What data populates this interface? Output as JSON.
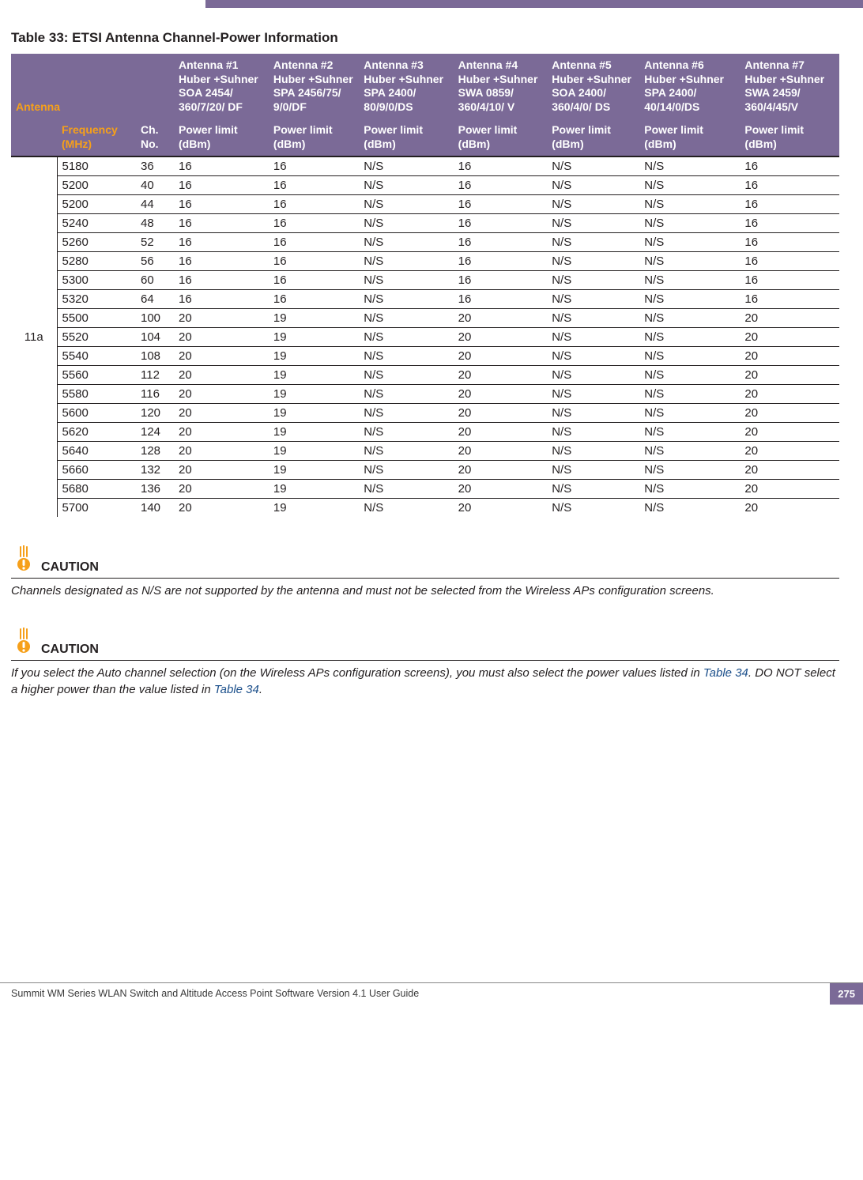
{
  "colors": {
    "header_bg": "#7b6a97",
    "header_fg": "#ffffff",
    "body_fg": "#231f20",
    "link": "#1a4e8a",
    "icon_orange": "#f6a01a"
  },
  "table": {
    "title": "Table 33: ETSI Antenna Channel-Power Information",
    "header_row1": {
      "antenna": "Antenna",
      "a1": "Antenna #1 Huber +Suhner SOA 2454/ 360/7/20/ DF",
      "a2": "Antenna #2 Huber +Suhner SPA 2456/75/ 9/0/DF",
      "a3": "Antenna #3 Huber +Suhner SPA 2400/ 80/9/0/DS",
      "a4": "Antenna #4 Huber +Suhner SWA 0859/ 360/4/10/ V",
      "a5": "Antenna #5 Huber +Suhner SOA 2400/ 360/4/0/ DS",
      "a6": "Antenna #6 Huber +Suhner SPA 2400/ 40/14/0/DS",
      "a7": "Antenna #7 Huber +Suhner SWA 2459/ 360/4/45/V"
    },
    "header_row2": {
      "blank": "",
      "freq": "Frequency (MHz)",
      "ch": "Ch. No.",
      "p": "Power limit (dBm)"
    },
    "band_label": "11a",
    "rows": [
      {
        "freq": "5180",
        "ch": "36",
        "a1": "16",
        "a2": "16",
        "a3": "N/S",
        "a4": "16",
        "a5": "N/S",
        "a6": "N/S",
        "a7": "16"
      },
      {
        "freq": "5200",
        "ch": "40",
        "a1": "16",
        "a2": "16",
        "a3": "N/S",
        "a4": "16",
        "a5": "N/S",
        "a6": "N/S",
        "a7": "16"
      },
      {
        "freq": "5200",
        "ch": "44",
        "a1": "16",
        "a2": "16",
        "a3": "N/S",
        "a4": "16",
        "a5": "N/S",
        "a6": "N/S",
        "a7": "16"
      },
      {
        "freq": "5240",
        "ch": "48",
        "a1": "16",
        "a2": "16",
        "a3": "N/S",
        "a4": "16",
        "a5": "N/S",
        "a6": "N/S",
        "a7": "16"
      },
      {
        "freq": "5260",
        "ch": "52",
        "a1": "16",
        "a2": "16",
        "a3": "N/S",
        "a4": "16",
        "a5": "N/S",
        "a6": "N/S",
        "a7": "16"
      },
      {
        "freq": "5280",
        "ch": "56",
        "a1": "16",
        "a2": "16",
        "a3": "N/S",
        "a4": "16",
        "a5": "N/S",
        "a6": "N/S",
        "a7": "16"
      },
      {
        "freq": "5300",
        "ch": "60",
        "a1": "16",
        "a2": "16",
        "a3": "N/S",
        "a4": "16",
        "a5": "N/S",
        "a6": "N/S",
        "a7": "16"
      },
      {
        "freq": "5320",
        "ch": "64",
        "a1": "16",
        "a2": "16",
        "a3": "N/S",
        "a4": "16",
        "a5": "N/S",
        "a6": "N/S",
        "a7": "16"
      },
      {
        "freq": "5500",
        "ch": "100",
        "a1": "20",
        "a2": "19",
        "a3": "N/S",
        "a4": "20",
        "a5": "N/S",
        "a6": "N/S",
        "a7": "20"
      },
      {
        "freq": "5520",
        "ch": "104",
        "a1": "20",
        "a2": "19",
        "a3": "N/S",
        "a4": "20",
        "a5": "N/S",
        "a6": "N/S",
        "a7": "20"
      },
      {
        "freq": "5540",
        "ch": "108",
        "a1": "20",
        "a2": "19",
        "a3": "N/S",
        "a4": "20",
        "a5": "N/S",
        "a6": "N/S",
        "a7": "20"
      },
      {
        "freq": "5560",
        "ch": "112",
        "a1": "20",
        "a2": "19",
        "a3": "N/S",
        "a4": "20",
        "a5": "N/S",
        "a6": "N/S",
        "a7": "20"
      },
      {
        "freq": "5580",
        "ch": "116",
        "a1": "20",
        "a2": "19",
        "a3": "N/S",
        "a4": "20",
        "a5": "N/S",
        "a6": "N/S",
        "a7": "20"
      },
      {
        "freq": "5600",
        "ch": "120",
        "a1": "20",
        "a2": "19",
        "a3": "N/S",
        "a4": "20",
        "a5": "N/S",
        "a6": "N/S",
        "a7": "20"
      },
      {
        "freq": "5620",
        "ch": "124",
        "a1": "20",
        "a2": "19",
        "a3": "N/S",
        "a4": "20",
        "a5": "N/S",
        "a6": "N/S",
        "a7": "20"
      },
      {
        "freq": "5640",
        "ch": "128",
        "a1": "20",
        "a2": "19",
        "a3": "N/S",
        "a4": "20",
        "a5": "N/S",
        "a6": "N/S",
        "a7": "20"
      },
      {
        "freq": "5660",
        "ch": "132",
        "a1": "20",
        "a2": "19",
        "a3": "N/S",
        "a4": "20",
        "a5": "N/S",
        "a6": "N/S",
        "a7": "20"
      },
      {
        "freq": "5680",
        "ch": "136",
        "a1": "20",
        "a2": "19",
        "a3": "N/S",
        "a4": "20",
        "a5": "N/S",
        "a6": "N/S",
        "a7": "20"
      },
      {
        "freq": "5700",
        "ch": "140",
        "a1": "20",
        "a2": "19",
        "a3": "N/S",
        "a4": "20",
        "a5": "N/S",
        "a6": "N/S",
        "a7": "20"
      }
    ]
  },
  "caution1": {
    "label": "CAUTION",
    "text": "Channels designated as N/S are not supported by the antenna and must not be selected from the Wireless APs configuration screens."
  },
  "caution2": {
    "label": "CAUTION",
    "text_before": "If you select the Auto channel selection (on the Wireless APs configuration screens), you must also select the power values listed in ",
    "link1": "Table 34",
    "text_mid": ". DO NOT select a higher power than the value listed in ",
    "link2": "Table 34",
    "text_after": "."
  },
  "footer": {
    "text": "Summit WM Series WLAN Switch and Altitude Access Point Software Version 4.1 User Guide",
    "page": "275"
  }
}
